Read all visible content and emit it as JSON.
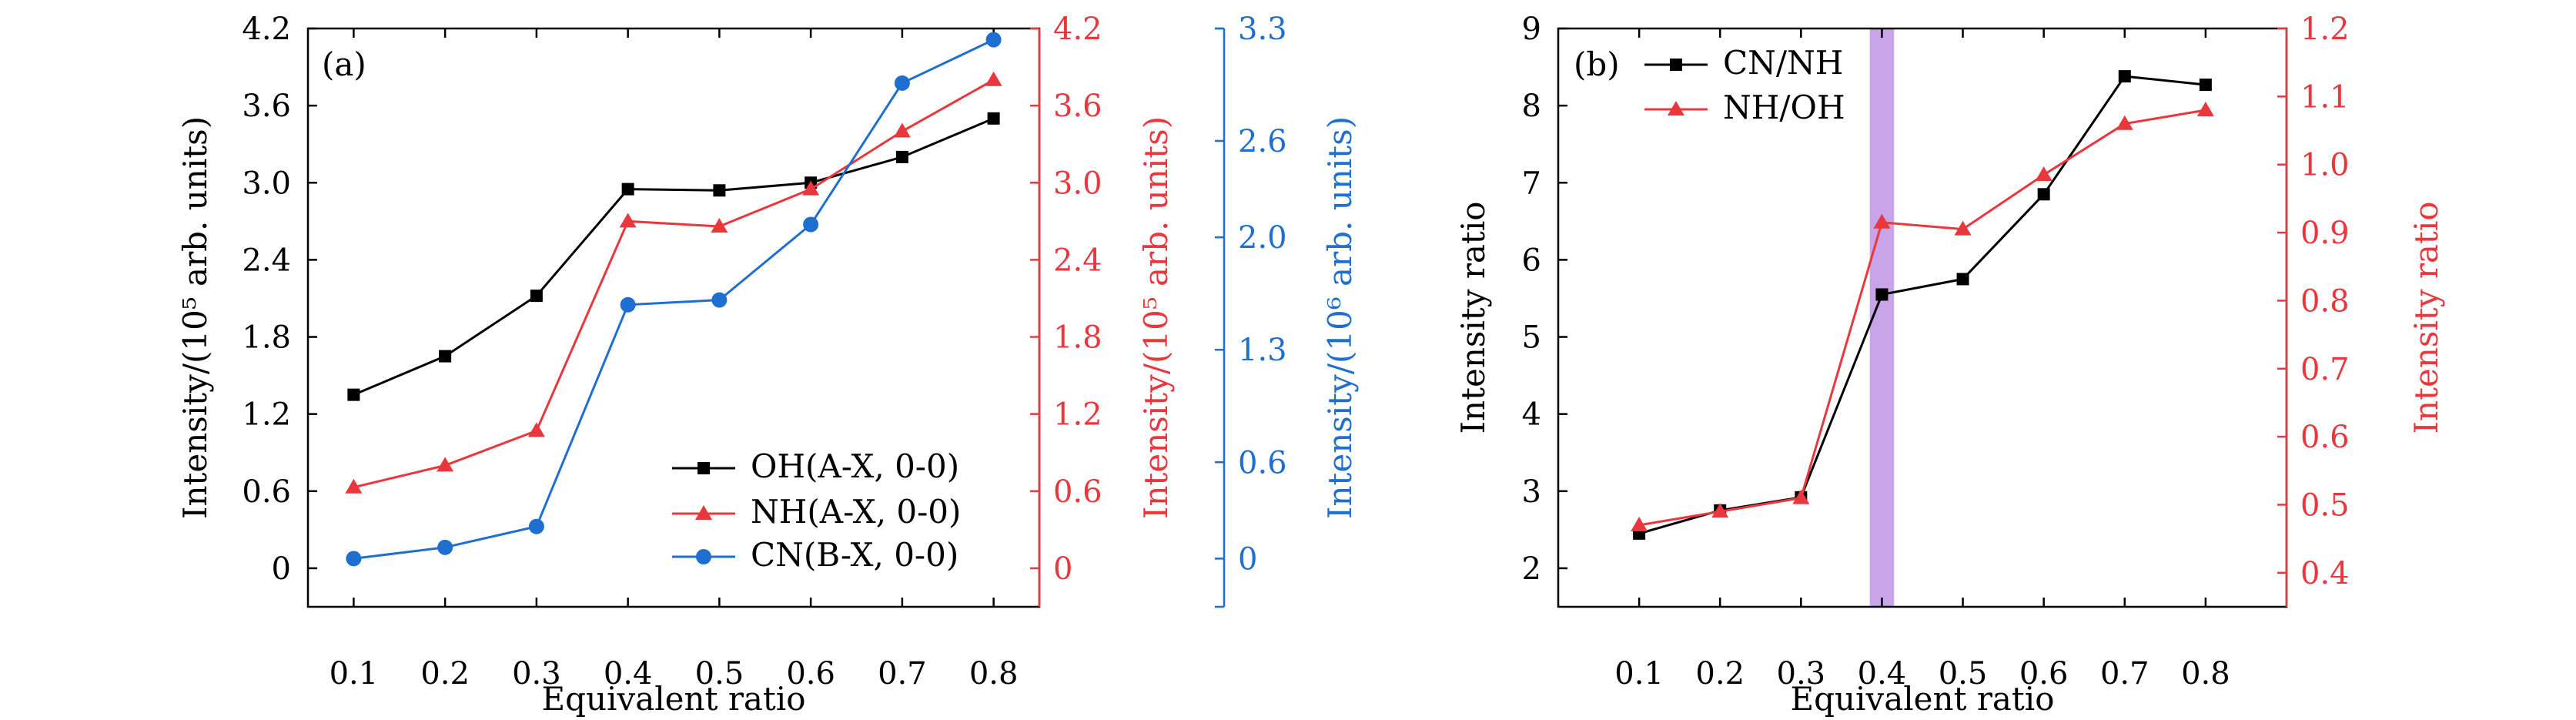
{
  "colors": {
    "black": "#000000",
    "red": "#e8383d",
    "blue": "#1f6fd1",
    "band": "#c9a4e8"
  },
  "chart_data": [
    {
      "panel": "(a)",
      "type": "line",
      "xlabel": "Equivalent ratio",
      "x": [
        0.1,
        0.2,
        0.3,
        0.4,
        0.5,
        0.6,
        0.7,
        0.8
      ],
      "xticks": [
        "0.1",
        "0.2",
        "0.3",
        "0.4",
        "0.5",
        "0.6",
        "0.7",
        "0.8"
      ],
      "xlim": [
        0.05,
        0.85
      ],
      "axes": [
        {
          "id": "left",
          "label": "Intensity/(10⁵ arb. units)",
          "ticks": [
            "0",
            "0.6",
            "1.2",
            "1.8",
            "2.4",
            "3.0",
            "3.6",
            "4.2"
          ],
          "ylim": [
            -0.3,
            4.2
          ]
        },
        {
          "id": "right1",
          "label": "Intensity/(10⁵ arb. units)",
          "ticks": [
            "0",
            "0.6",
            "1.2",
            "1.8",
            "2.4",
            "3.0",
            "3.6",
            "4.2"
          ],
          "ylim": [
            -0.3,
            4.2
          ]
        },
        {
          "id": "right2",
          "label": "Intensity/(10⁶ arb. units)",
          "ticks": [
            "0",
            "0.6",
            "1.3",
            "2.0",
            "2.6",
            "3.3"
          ],
          "ylim": [
            -0.3,
            3.3
          ]
        }
      ],
      "series": [
        {
          "name": "OH(A-X, 0-0)",
          "axis": "left",
          "marker": "square",
          "values": [
            1.35,
            1.65,
            2.12,
            2.95,
            2.94,
            3.0,
            3.2,
            3.5
          ]
        },
        {
          "name": "NH(A-X, 0-0)",
          "axis": "right1",
          "marker": "triangle",
          "values": [
            0.63,
            0.8,
            1.07,
            2.7,
            2.66,
            2.95,
            3.4,
            3.8
          ]
        },
        {
          "name": "CN(B-X, 0-0)",
          "axis": "right2",
          "marker": "circle",
          "values": [
            0.0,
            0.07,
            0.2,
            1.58,
            1.61,
            2.08,
            2.96,
            3.23
          ]
        }
      ],
      "legend_position": "bottom-right"
    },
    {
      "panel": "(b)",
      "type": "line",
      "xlabel": "Equivalent ratio",
      "x": [
        0.1,
        0.2,
        0.3,
        0.4,
        0.5,
        0.6,
        0.7,
        0.8
      ],
      "xticks": [
        "0.1",
        "0.2",
        "0.3",
        "0.4",
        "0.5",
        "0.6",
        "0.7",
        "0.8"
      ],
      "xlim": [
        0.0,
        0.9
      ],
      "highlight_band_x": [
        0.385,
        0.415
      ],
      "axes": [
        {
          "id": "left",
          "label": "Intensity ratio",
          "ticks": [
            "2",
            "3",
            "4",
            "5",
            "6",
            "7",
            "8",
            "9"
          ],
          "ylim": [
            1.5,
            9.0
          ]
        },
        {
          "id": "right",
          "label": "Intensity ratio",
          "ticks": [
            "0.4",
            "0.5",
            "0.6",
            "0.7",
            "0.8",
            "0.9",
            "1.0",
            "1.1",
            "1.2"
          ],
          "ylim": [
            0.35,
            1.2
          ]
        }
      ],
      "series": [
        {
          "name": "CN/NH",
          "axis": "left",
          "marker": "square",
          "values": [
            2.45,
            2.75,
            2.92,
            5.55,
            5.75,
            6.85,
            8.38,
            8.27
          ]
        },
        {
          "name": "NH/OH",
          "axis": "right",
          "marker": "triangle",
          "values": [
            0.47,
            0.49,
            0.51,
            0.915,
            0.905,
            0.985,
            1.06,
            1.08
          ]
        }
      ],
      "legend_position": "top-left"
    }
  ]
}
